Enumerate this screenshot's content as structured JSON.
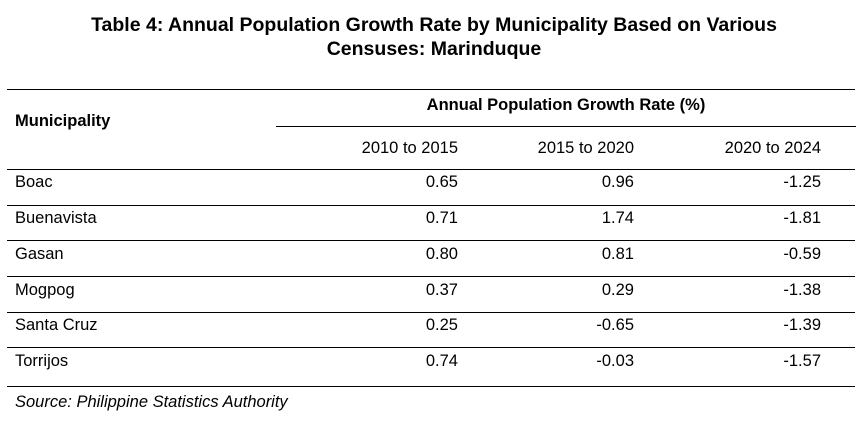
{
  "title": {
    "line1": "Table 4: Annual Population Growth Rate by Municipality Based on Various",
    "line2": "Censuses: Marinduque"
  },
  "table": {
    "row_header": "Municipality",
    "group_header": "Annual Population Growth Rate (%)",
    "columns": [
      "2010 to 2015",
      "2015 to 2020",
      "2020 to 2024"
    ],
    "rows": [
      {
        "municipality": "Boac",
        "values": [
          "0.65",
          "0.96",
          "-1.25"
        ]
      },
      {
        "municipality": "Buenavista",
        "values": [
          "0.71",
          "1.74",
          "-1.81"
        ]
      },
      {
        "municipality": "Gasan",
        "values": [
          "0.80",
          "0.81",
          "-0.59"
        ]
      },
      {
        "municipality": "Mogpog",
        "values": [
          "0.37",
          "0.29",
          "-1.38"
        ]
      },
      {
        "municipality": "Santa Cruz",
        "values": [
          "0.25",
          "-0.65",
          "-1.39"
        ]
      },
      {
        "municipality": "Torrijos",
        "values": [
          "0.74",
          "-0.03",
          "-1.57"
        ]
      }
    ]
  },
  "source": "Source: Philippine Statistics Authority"
}
